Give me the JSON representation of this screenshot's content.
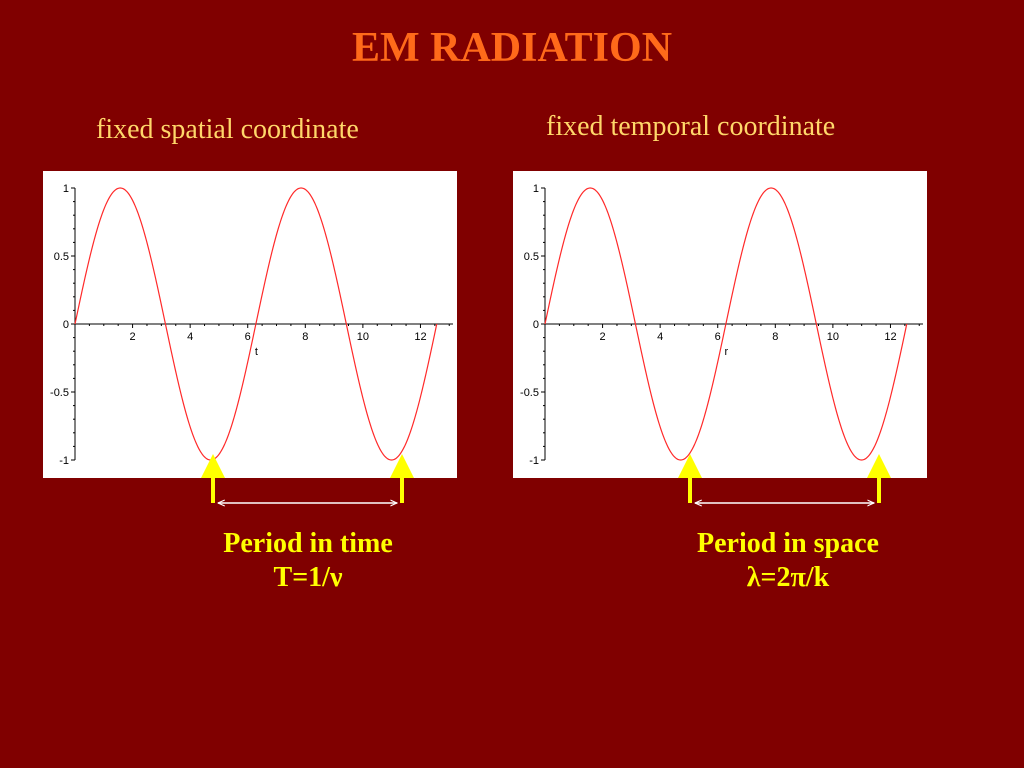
{
  "slide": {
    "title": "EM RADIATION"
  },
  "left_panel": {
    "subtitle": "fixed spatial coordinate",
    "caption_line1": "Period in time",
    "caption_line2": "T=1/ν"
  },
  "right_panel": {
    "subtitle": "fixed temporal coordinate",
    "caption_line1": "Period in space",
    "caption_line2": "λ=2π/k"
  },
  "colors": {
    "background": "#800000",
    "title": "#ff6a1a",
    "subtitle": "#ffd76a",
    "caption": "#ffff00",
    "curve": "#ff2a2a",
    "arrow": "#ffff00"
  },
  "chart_data": [
    {
      "type": "line",
      "function": "sin",
      "xlabel": "t",
      "ylabel": "",
      "xlim": [
        0,
        13.2
      ],
      "ylim": [
        -1,
        1
      ],
      "xticks": [
        2,
        4,
        6,
        8,
        10,
        12
      ],
      "yticks": [
        1,
        0.5,
        0,
        -0.5,
        -1
      ],
      "ytick_labels": [
        "1",
        "0.5",
        "0",
        "-0.5",
        "-1"
      ],
      "series": [
        {
          "values_from": "sin(x)",
          "x_range": [
            0,
            12.566
          ]
        }
      ],
      "grid": false
    },
    {
      "type": "line",
      "function": "sin",
      "xlabel": "r",
      "ylabel": "",
      "xlim": [
        0,
        13.2
      ],
      "ylim": [
        -1,
        1
      ],
      "xticks": [
        2,
        4,
        6,
        8,
        10,
        12
      ],
      "yticks": [
        1,
        0.5,
        0,
        -0.5,
        -1
      ],
      "ytick_labels": [
        "1",
        "0.5",
        "0",
        "-0.5",
        "-1"
      ],
      "series": [
        {
          "values_from": "sin(x)",
          "x_range": [
            0,
            12.566
          ]
        }
      ],
      "grid": false
    }
  ]
}
